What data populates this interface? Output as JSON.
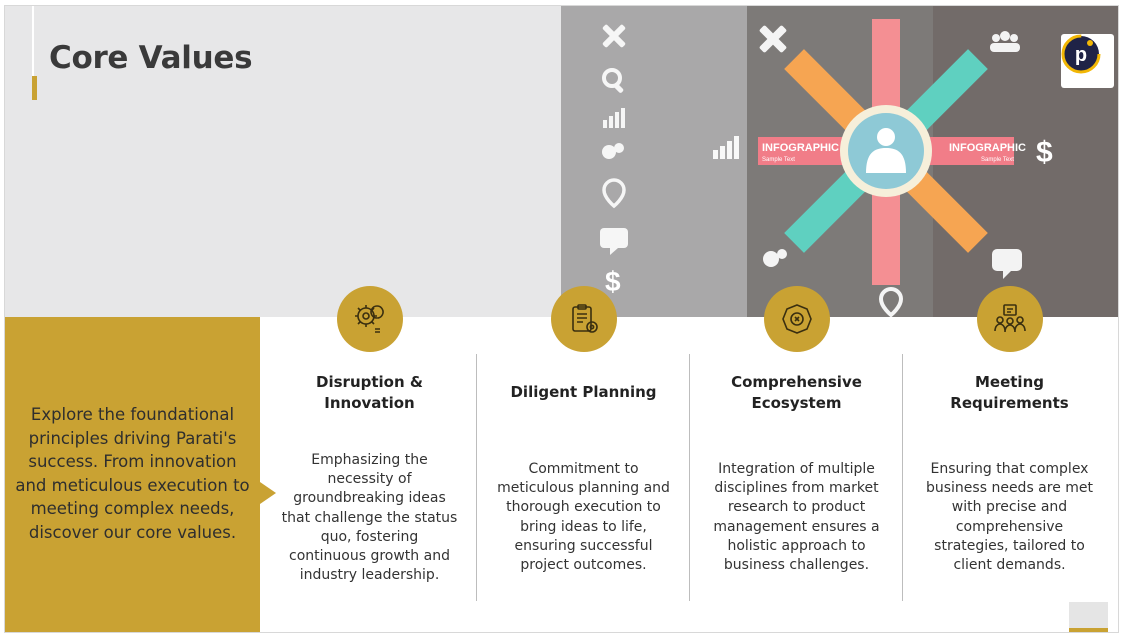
{
  "slide": {
    "title": "Core Values",
    "intro": "Explore the foundational principles driving Parati's success. From innovation and meticulous execution to meeting complex needs, discover our core values."
  },
  "hero": {
    "infographic_label": "INFOGRAPHIC",
    "sample_label": "Sample Text",
    "currency_symbol": "$",
    "logo_letter": "p"
  },
  "values": [
    {
      "icon": "gear-lightbulb-icon",
      "title_lines": [
        "Disruption &",
        "Innovation"
      ],
      "description_lines": [
        "Emphasizing the",
        "necessity of",
        "groundbreaking ideas",
        "that challenge the status",
        "quo, fostering",
        "continuous growth and",
        "industry leadership."
      ]
    },
    {
      "icon": "clipboard-gear-icon",
      "title_lines": [
        "Diligent Planning"
      ],
      "description_lines": [
        "Commitment to",
        "meticulous planning and",
        "thorough execution to",
        "bring ideas to life,",
        "ensuring successful",
        "project outcomes."
      ]
    },
    {
      "icon": "network-hub-icon",
      "title_lines": [
        "Comprehensive",
        "Ecosystem"
      ],
      "description_lines": [
        "Integration of multiple",
        "disciplines from market",
        "research to product",
        "management ensures a",
        "holistic approach to",
        "business challenges."
      ]
    },
    {
      "icon": "team-meeting-icon",
      "title_lines": [
        "Meeting",
        "Requirements"
      ],
      "description_lines": [
        "Ensuring that complex",
        "business needs are met",
        "with precise and",
        "comprehensive",
        "strategies, tailored to",
        "client demands."
      ]
    }
  ],
  "colors": {
    "accent": "#c9a233",
    "title": "#3a3a3a",
    "band": "#e7e7e8"
  }
}
